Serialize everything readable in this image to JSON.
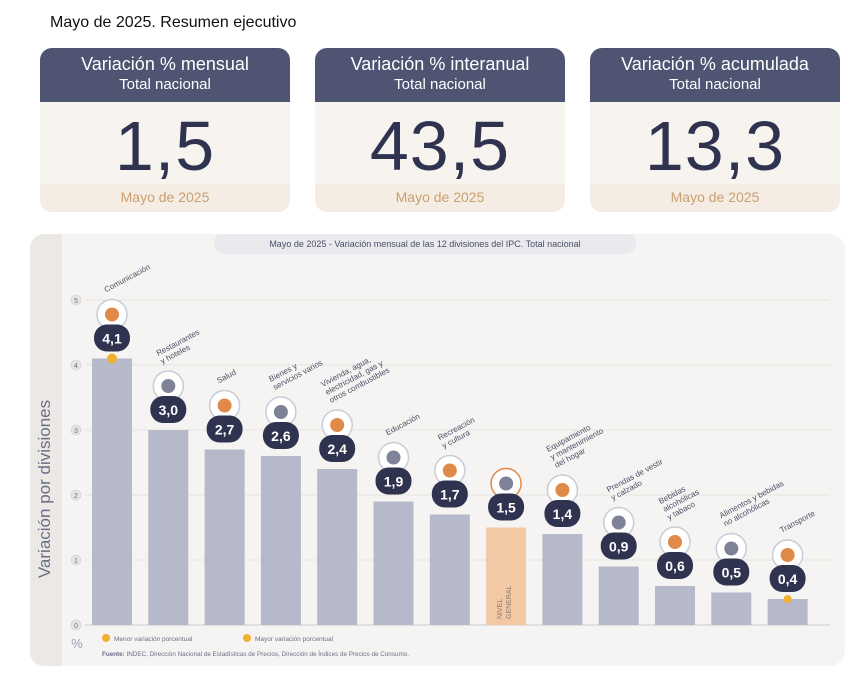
{
  "page": {
    "title": "Mayo de 2025. Resumen ejecutivo"
  },
  "cards": [
    {
      "title": "Variación % mensual",
      "subtitle": "Total nacional",
      "value": "1,5",
      "period": "Mayo de 2025"
    },
    {
      "title": "Variación % interanual",
      "subtitle": "Total nacional",
      "value": "43,5",
      "period": "Mayo de 2025"
    },
    {
      "title": "Variación % acumulada",
      "subtitle": "Total nacional",
      "value": "13,3",
      "period": "Mayo de 2025"
    }
  ],
  "chart_data": {
    "type": "bar",
    "title": "Mayo de 2025 - Variación mensual de las 12 divisiones del IPC. Total nacional",
    "ylabel": "Variación por divisiones",
    "yunit": "%",
    "ylim": [
      0,
      5
    ],
    "yticks": [
      0,
      1,
      2,
      3,
      4,
      5
    ],
    "categories": [
      "Comunicación",
      "Restaurantes y hoteles",
      "Salud",
      "Bienes y servicios varios",
      "Vivienda, agua, electricidad, gas y otros combustibles",
      "Educación",
      "Recreación y cultura",
      "Nivel general",
      "Equipamiento y mantenimiento del hogar",
      "Prendas de vestir y calzado",
      "Bebidas alcohólicas y tabaco",
      "Alimentos y bebidas no alcohólicas",
      "Transporte"
    ],
    "values": [
      4.1,
      3.0,
      2.7,
      2.6,
      2.4,
      1.9,
      1.7,
      1.5,
      1.4,
      0.9,
      0.6,
      0.5,
      0.4
    ],
    "value_labels": [
      "4,1",
      "3,0",
      "2,7",
      "2,6",
      "2,4",
      "1,9",
      "1,7",
      "1,5",
      "1,4",
      "0,9",
      "0,6",
      "0,5",
      "0,4"
    ],
    "category_labels": [
      [
        "Comunicación"
      ],
      [
        "Restaurantes",
        "y hoteles"
      ],
      [
        "Salud"
      ],
      [
        "Bienes y",
        "servicios varios"
      ],
      [
        "Vivienda, agua,",
        "electricidad, gas y",
        "otros combustibles"
      ],
      [
        "Educación"
      ],
      [
        "Recreación",
        "y cultura"
      ],
      [],
      [
        "Equipamiento",
        "y mantenimiento",
        "del hogar"
      ],
      [
        "Prendas de vestir",
        "y calzado"
      ],
      [
        "Bebidas",
        "alcohólicas",
        "y tabaco"
      ],
      [
        "Alimentos y bebidas",
        "no alcohólicas"
      ],
      [
        "Transporte"
      ]
    ],
    "highlight_label": [
      "NIVEL",
      "GENERAL"
    ],
    "max_index": 0,
    "min_index": 12,
    "legend": [
      {
        "label": "Menor variación porcentual",
        "color": "#f0b030"
      },
      {
        "label": "Mayor variación porcentual",
        "color": "#f0b030"
      }
    ],
    "source_bold": "Fuente:",
    "source_text": " INDEC, Dirección Nacional de Estadísticas de Precios, Dirección de Índices de Precios de Consumo.",
    "colors": {
      "bar": "#b5b9c9",
      "highlight_bar": "#f2c9a4",
      "badge": "#2f3350",
      "accent": "#f0b030",
      "icon_orange": "#e08a4a"
    }
  }
}
